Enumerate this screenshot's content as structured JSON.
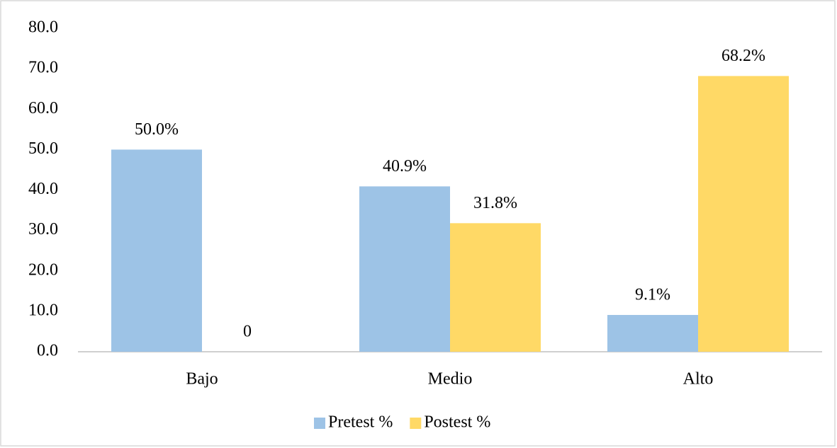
{
  "chart_data": {
    "type": "bar",
    "categories": [
      "Bajo",
      "Medio",
      "Alto"
    ],
    "series": [
      {
        "name": "Pretest %",
        "color": "#9dc3e6",
        "values": [
          50.0,
          40.9,
          9.1
        ],
        "value_labels": [
          "50.0%",
          "40.9%",
          "9.1%"
        ]
      },
      {
        "name": "Postest %",
        "color": "#ffd966",
        "values": [
          0,
          31.8,
          68.2
        ],
        "value_labels": [
          "0",
          "31.8%",
          "68.2%"
        ]
      }
    ],
    "ylim": [
      0,
      80
    ],
    "yticks": [
      {
        "value": 0,
        "label": "0.0"
      },
      {
        "value": 10,
        "label": "10.0"
      },
      {
        "value": 20,
        "label": "20.0"
      },
      {
        "value": 30,
        "label": "30.0"
      },
      {
        "value": 40,
        "label": "40.0"
      },
      {
        "value": 50,
        "label": "50.0"
      },
      {
        "value": 60,
        "label": "60.0"
      },
      {
        "value": 70,
        "label": "70.0"
      },
      {
        "value": 80,
        "label": "80.0"
      }
    ],
    "legend": "bottom",
    "grid": false
  }
}
